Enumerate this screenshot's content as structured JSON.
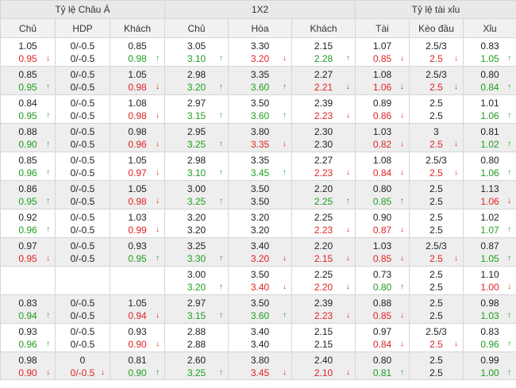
{
  "groups": [
    "Tỷ lệ Châu Á",
    "1X2",
    "Tỷ lệ tài xỉu"
  ],
  "columns": [
    "Chủ",
    "HDP",
    "Khách",
    "Chủ",
    "Hòa",
    "Khách",
    "Tài",
    "Kèo đầu",
    "Xỉu"
  ],
  "colors": {
    "up": "#1e9e1e",
    "down": "#e02424",
    "alt_row": "#eeeeee",
    "header": "#e9e9e9"
  },
  "arrow_symbols": {
    "up": "↑",
    "down": "↓"
  },
  "rows": [
    [
      [
        "1.05",
        "0.95",
        "down"
      ],
      [
        "0/-0.5",
        "0/-0.5",
        ""
      ],
      [
        "0.85",
        "0.98",
        "up"
      ],
      [
        "3.05",
        "3.10",
        "up"
      ],
      [
        "3.30",
        "3.20",
        "down"
      ],
      [
        "2.15",
        "2.28",
        "up"
      ],
      [
        "1.07",
        "0.85",
        "down"
      ],
      [
        "2.5/3",
        "2.5",
        "down"
      ],
      [
        "0.83",
        "1.05",
        "up"
      ]
    ],
    [
      [
        "0.85",
        "0.95",
        "up"
      ],
      [
        "0/-0.5",
        "0/-0.5",
        ""
      ],
      [
        "1.05",
        "0.98",
        "down"
      ],
      [
        "2.98",
        "3.20",
        "up"
      ],
      [
        "3.35",
        "3.60",
        "up"
      ],
      [
        "2.27",
        "2.21",
        "down"
      ],
      [
        "1.08",
        "1.06",
        "down"
      ],
      [
        "2.5/3",
        "2.5",
        "down"
      ],
      [
        "0.80",
        "0.84",
        "up"
      ]
    ],
    [
      [
        "0.84",
        "0.95",
        "up"
      ],
      [
        "0/-0.5",
        "0/-0.5",
        ""
      ],
      [
        "1.08",
        "0.98",
        "down"
      ],
      [
        "2.97",
        "3.15",
        "up"
      ],
      [
        "3.50",
        "3.60",
        "up"
      ],
      [
        "2.39",
        "2.23",
        "down"
      ],
      [
        "0.89",
        "0.86",
        "down"
      ],
      [
        "2.5",
        "2.5",
        ""
      ],
      [
        "1.01",
        "1.06",
        "up"
      ]
    ],
    [
      [
        "0.88",
        "0.90",
        "up"
      ],
      [
        "0/-0.5",
        "0/-0.5",
        ""
      ],
      [
        "0.98",
        "0.96",
        "down"
      ],
      [
        "2.95",
        "3.25",
        "up"
      ],
      [
        "3.80",
        "3.35",
        "down"
      ],
      [
        "2.30",
        "2.30",
        ""
      ],
      [
        "1.03",
        "0.82",
        "down"
      ],
      [
        "3",
        "2.5",
        "down"
      ],
      [
        "0.81",
        "1.02",
        "up"
      ]
    ],
    [
      [
        "0.85",
        "0.96",
        "up"
      ],
      [
        "0/-0.5",
        "0/-0.5",
        ""
      ],
      [
        "1.05",
        "0.97",
        "down"
      ],
      [
        "2.98",
        "3.10",
        "up"
      ],
      [
        "3.35",
        "3.45",
        "up"
      ],
      [
        "2.27",
        "2.23",
        "down"
      ],
      [
        "1.08",
        "0.84",
        "down"
      ],
      [
        "2.5/3",
        "2.5",
        "down"
      ],
      [
        "0.80",
        "1.06",
        "up"
      ]
    ],
    [
      [
        "0.86",
        "0.95",
        "up"
      ],
      [
        "0/-0.5",
        "0/-0.5",
        ""
      ],
      [
        "1.05",
        "0.98",
        "down"
      ],
      [
        "3.00",
        "3.25",
        "up"
      ],
      [
        "3.50",
        "3.50",
        ""
      ],
      [
        "2.20",
        "2.25",
        "up"
      ],
      [
        "0.80",
        "0.85",
        "up"
      ],
      [
        "2.5",
        "2.5",
        ""
      ],
      [
        "1.13",
        "1.06",
        "down"
      ]
    ],
    [
      [
        "0.92",
        "0.96",
        "up"
      ],
      [
        "0/-0.5",
        "0/-0.5",
        ""
      ],
      [
        "1.03",
        "0.99",
        "down"
      ],
      [
        "3.20",
        "3.20",
        ""
      ],
      [
        "3.20",
        "3.20",
        ""
      ],
      [
        "2.25",
        "2.23",
        "down"
      ],
      [
        "0.90",
        "0.87",
        "down"
      ],
      [
        "2.5",
        "2.5",
        ""
      ],
      [
        "1.02",
        "1.07",
        "up"
      ]
    ],
    [
      [
        "0.97",
        "0.95",
        "down"
      ],
      [
        "0/-0.5",
        "0/-0.5",
        ""
      ],
      [
        "0.93",
        "0.95",
        "up"
      ],
      [
        "3.25",
        "3.30",
        "up"
      ],
      [
        "3.40",
        "3.20",
        "down"
      ],
      [
        "2.20",
        "2.15",
        "down"
      ],
      [
        "1.03",
        "0.85",
        "down"
      ],
      [
        "2.5/3",
        "2.5",
        "down"
      ],
      [
        "0.87",
        "1.05",
        "up"
      ]
    ],
    [
      [
        "",
        "",
        ""
      ],
      [
        "",
        "",
        ""
      ],
      [
        "",
        "",
        ""
      ],
      [
        "3.00",
        "3.20",
        "up"
      ],
      [
        "3.50",
        "3.40",
        "down"
      ],
      [
        "2.25",
        "2.20",
        "down"
      ],
      [
        "0.73",
        "0.80",
        "up"
      ],
      [
        "2.5",
        "2.5",
        ""
      ],
      [
        "1.10",
        "1.00",
        "down"
      ]
    ],
    [
      [
        "0.83",
        "0.94",
        "up"
      ],
      [
        "0/-0.5",
        "0/-0.5",
        ""
      ],
      [
        "1.05",
        "0.94",
        "down"
      ],
      [
        "2.97",
        "3.15",
        "up"
      ],
      [
        "3.50",
        "3.60",
        "up"
      ],
      [
        "2.39",
        "2.23",
        "down"
      ],
      [
        "0.88",
        "0.85",
        "down"
      ],
      [
        "2.5",
        "2.5",
        ""
      ],
      [
        "0.98",
        "1.03",
        "up"
      ]
    ],
    [
      [
        "0.93",
        "0.96",
        "up"
      ],
      [
        "0/-0.5",
        "0/-0.5",
        ""
      ],
      [
        "0.93",
        "0.90",
        "down"
      ],
      [
        "2.88",
        "2.88",
        ""
      ],
      [
        "3.40",
        "3.40",
        ""
      ],
      [
        "2.15",
        "2.15",
        ""
      ],
      [
        "0.97",
        "0.84",
        "down"
      ],
      [
        "2.5/3",
        "2.5",
        "down"
      ],
      [
        "0.83",
        "0.96",
        "up"
      ]
    ],
    [
      [
        "0.98",
        "0.90",
        "down"
      ],
      [
        "0",
        "0/-0.5",
        "down"
      ],
      [
        "0.81",
        "0.90",
        "up"
      ],
      [
        "2.60",
        "3.25",
        "up"
      ],
      [
        "3.80",
        "3.45",
        "down"
      ],
      [
        "2.40",
        "2.10",
        "down"
      ],
      [
        "0.80",
        "0.81",
        "up"
      ],
      [
        "2.5",
        "2.5",
        ""
      ],
      [
        "0.99",
        "1.00",
        "up"
      ]
    ]
  ]
}
